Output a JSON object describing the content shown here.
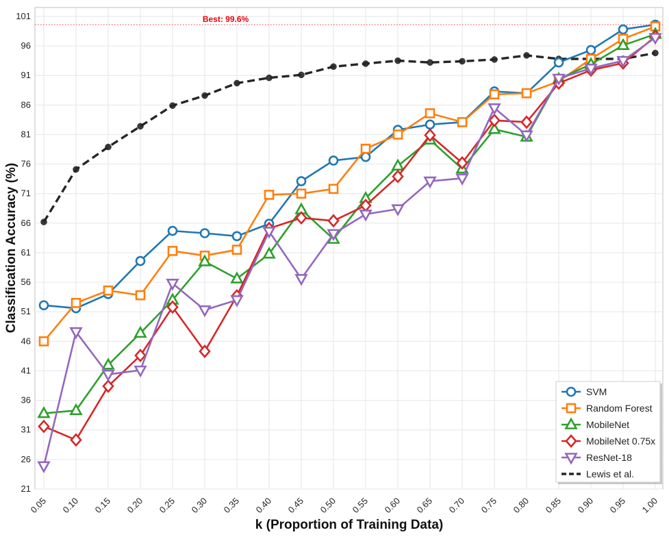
{
  "chart_data": {
    "type": "line",
    "xlabel": "k (Proportion of Training Data)",
    "ylabel": "Classification Accuracy (%)",
    "x": [
      0.05,
      0.1,
      0.15,
      0.2,
      0.25,
      0.3,
      0.35,
      0.4,
      0.45,
      0.5,
      0.55,
      0.6,
      0.65,
      0.7,
      0.75,
      0.8,
      0.85,
      0.9,
      0.95,
      1.0
    ],
    "x_tick_labels": [
      "0.05",
      "0.10",
      "0.15",
      "0.20",
      "0.25",
      "0.30",
      "0.35",
      "0.40",
      "0.45",
      "0.50",
      "0.55",
      "0.60",
      "0.65",
      "0.70",
      "0.75",
      "0.80",
      "0.85",
      "0.90",
      "0.95",
      "1.00"
    ],
    "y_ticks": [
      21,
      26,
      31,
      36,
      41,
      46,
      51,
      56,
      61,
      66,
      71,
      76,
      81,
      86,
      91,
      96,
      101
    ],
    "xlim": [
      0.05,
      1.0
    ],
    "ylim": [
      21,
      102.5
    ],
    "grid": true,
    "legend_position": "lower-right",
    "annotation": {
      "text": "Best: 99.6%",
      "y": 99.6
    },
    "series": [
      {
        "name": "SVM",
        "marker": "circle",
        "color": "#1f77b4",
        "dashed": false,
        "values": [
          52.1,
          51.6,
          54.0,
          59.6,
          64.7,
          64.3,
          63.8,
          65.9,
          73.1,
          76.6,
          77.2,
          81.8,
          82.7,
          83.1,
          88.3,
          88.0,
          93.2,
          95.3,
          98.8,
          99.6
        ]
      },
      {
        "name": "Random Forest",
        "marker": "square",
        "color": "#ff7f0e",
        "dashed": false,
        "values": [
          46.0,
          52.5,
          54.6,
          53.8,
          61.3,
          60.5,
          61.5,
          70.8,
          71.0,
          71.8,
          78.6,
          81.0,
          84.6,
          83.1,
          87.8,
          88.0,
          90.0,
          93.8,
          97.2,
          99.3
        ]
      },
      {
        "name": "MobileNet",
        "marker": "triangle-up",
        "color": "#2ca02c",
        "dashed": false,
        "values": [
          33.8,
          34.3,
          42.0,
          47.4,
          53.0,
          59.5,
          56.6,
          60.8,
          68.3,
          63.3,
          70.2,
          75.7,
          80.1,
          75.2,
          81.9,
          80.6,
          90.4,
          92.9,
          96.1,
          98.0
        ]
      },
      {
        "name": "MobileNet 0.75x",
        "marker": "diamond",
        "color": "#d62728",
        "dashed": false,
        "values": [
          31.6,
          29.3,
          38.4,
          43.6,
          51.8,
          44.3,
          53.7,
          65.1,
          66.9,
          66.4,
          69.0,
          73.9,
          80.9,
          76.2,
          83.4,
          83.1,
          89.7,
          91.9,
          93.1,
          97.6
        ]
      },
      {
        "name": "ResNet-18",
        "marker": "triangle-down",
        "color": "#9467bd",
        "dashed": false,
        "values": [
          24.9,
          47.6,
          40.4,
          41.1,
          55.8,
          51.3,
          53.0,
          64.6,
          56.6,
          64.2,
          67.5,
          68.4,
          73.1,
          73.6,
          85.5,
          80.9,
          90.5,
          92.2,
          93.5,
          97.4
        ]
      },
      {
        "name": "Lewis et al.",
        "marker": "dot",
        "color": "#262626",
        "dashed": true,
        "values": [
          66.2,
          75.1,
          78.9,
          82.4,
          85.9,
          87.6,
          89.7,
          90.6,
          91.1,
          92.5,
          93.0,
          93.5,
          93.2,
          93.4,
          93.7,
          94.4,
          93.8,
          93.8,
          93.8,
          94.8
        ]
      }
    ]
  }
}
